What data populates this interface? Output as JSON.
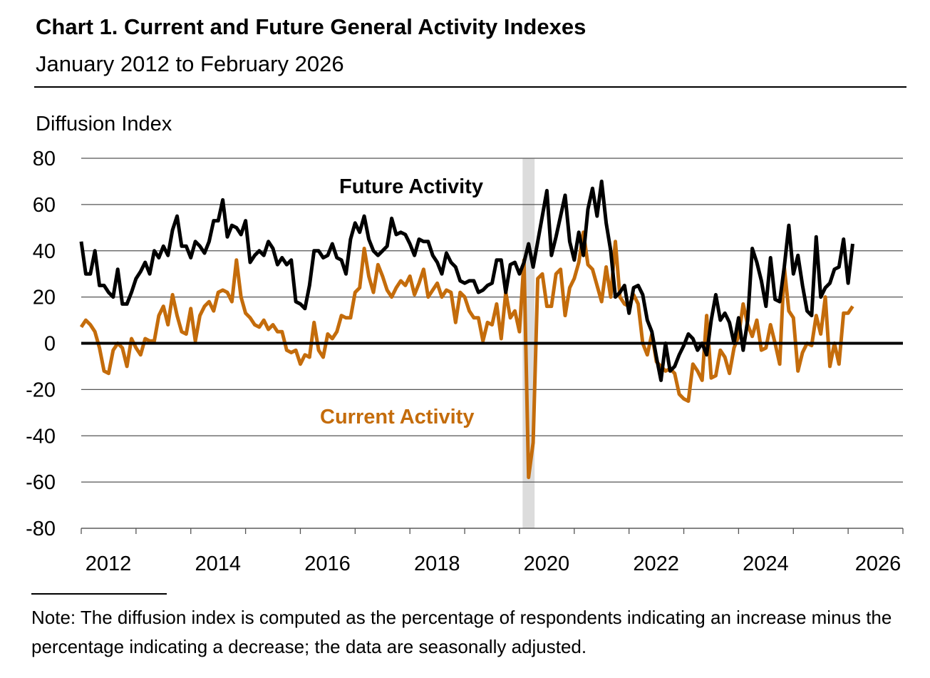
{
  "header": {
    "title": "Chart 1. Current and Future General Activity Indexes",
    "subtitle": "January 2012 to February 2026"
  },
  "note": "Note: The diffusion index is computed as the percentage of respondents indicating an increase minus the percentage indicating a decrease; the data are seasonally adjusted.",
  "chart_data": {
    "type": "line",
    "title": "Chart 1. Current and Future General Activity Indexes",
    "subtitle": "January 2012 to February 2026",
    "ylabel": "Diffusion Index",
    "xlabel": "",
    "ylim": [
      -80,
      80
    ],
    "yticks": [
      "80",
      "60",
      "40",
      "20",
      "0",
      "-20",
      "-40",
      "-60",
      "-80"
    ],
    "xticks": [
      "2012",
      "2014",
      "2016",
      "2018",
      "2020",
      "2022",
      "2024",
      "2026"
    ],
    "xrange": [
      "2012-01",
      "2026-12"
    ],
    "frequency": "monthly",
    "grid": true,
    "shaded_period": [
      "2020-02",
      "2020-04"
    ],
    "shade_color": "#dcdcdc",
    "series": [
      {
        "name": "Future Activity",
        "color": "#000000",
        "values_by_year": {
          "2012": [
            44,
            30,
            30,
            40,
            25,
            25,
            22,
            20,
            32,
            17,
            17,
            22
          ],
          "2013": [
            28,
            31,
            35,
            30,
            40,
            37,
            42,
            38,
            49,
            55,
            42,
            42
          ],
          "2014": [
            37,
            44,
            42,
            39,
            44,
            53,
            53,
            62,
            46,
            51,
            50,
            47
          ],
          "2015": [
            53,
            35,
            38,
            40,
            38,
            44,
            41,
            34,
            37,
            34,
            36,
            18
          ],
          "2016": [
            17,
            15,
            25,
            40,
            40,
            37,
            38,
            43,
            37,
            36,
            30,
            45
          ],
          "2017": [
            52,
            48,
            55,
            45,
            40,
            38,
            40,
            42,
            54,
            47,
            48,
            47
          ],
          "2018": [
            43,
            38,
            45,
            44,
            44,
            38,
            35,
            30,
            39,
            35,
            33,
            27
          ],
          "2019": [
            26,
            27,
            27,
            22,
            23,
            25,
            26,
            36,
            36,
            22,
            34,
            35
          ],
          "2020": [
            30,
            35,
            43,
            33,
            44,
            55,
            66,
            38,
            46,
            55,
            64,
            44
          ],
          "2021": [
            36,
            48,
            38,
            58,
            67,
            55,
            70,
            52,
            40,
            20,
            22,
            25
          ],
          "2022": [
            13,
            24,
            25,
            21,
            10,
            5,
            -6,
            -16,
            0,
            -12,
            -10,
            -5
          ],
          "2023": [
            -1,
            4,
            2,
            -3,
            0,
            -5,
            10,
            21,
            10,
            13,
            9,
            0
          ],
          "2024": [
            11,
            -3,
            10,
            41,
            35,
            27,
            16,
            37,
            19,
            18,
            33,
            51
          ],
          "2025": [
            30,
            38,
            25,
            14,
            12,
            46,
            20,
            24,
            26,
            32,
            33,
            45
          ],
          "2026": [
            26,
            43
          ]
        }
      },
      {
        "name": "Current Activity",
        "color": "#c46c0b",
        "values_by_year": {
          "2012": [
            7,
            10,
            8,
            5,
            -2,
            -12,
            -13,
            -3,
            0,
            -2,
            -10,
            2
          ],
          "2013": [
            -2,
            -5,
            2,
            1,
            1,
            12,
            16,
            8,
            21,
            12,
            5,
            4
          ],
          "2014": [
            15,
            1,
            12,
            16,
            18,
            14,
            22,
            23,
            22,
            18,
            36,
            20
          ],
          "2015": [
            13,
            11,
            8,
            7,
            10,
            6,
            8,
            5,
            5,
            -3,
            -4,
            -3
          ],
          "2016": [
            -9,
            -5,
            -6,
            9,
            -3,
            -6,
            4,
            2,
            5,
            12,
            11,
            11
          ],
          "2017": [
            22,
            24,
            41,
            29,
            22,
            34,
            29,
            23,
            20,
            24,
            27,
            25
          ],
          "2018": [
            29,
            21,
            26,
            32,
            20,
            23,
            26,
            20,
            23,
            22,
            9,
            22
          ],
          "2019": [
            20,
            14,
            11,
            11,
            1,
            9,
            8,
            17,
            2,
            22,
            11,
            14
          ],
          "2020": [
            5,
            36,
            -58,
            -43,
            28,
            30,
            16,
            16,
            30,
            32,
            12,
            24
          ],
          "2021": [
            28,
            35,
            48,
            34,
            32,
            25,
            18,
            33,
            20,
            44,
            20,
            17
          ],
          "2022": [
            16,
            21,
            17,
            0,
            -5,
            4,
            -8,
            -10,
            -12,
            -11,
            -13,
            -22
          ],
          "2023": [
            -24,
            -25,
            -9,
            -12,
            -16,
            12,
            -15,
            -14,
            -3,
            -6,
            -13,
            -2
          ],
          "2024": [
            3,
            17,
            8,
            3,
            10,
            -3,
            -2,
            8,
            0,
            -9,
            33,
            14
          ],
          "2025": [
            11,
            -12,
            -4,
            0,
            -1,
            12,
            4,
            20,
            -10,
            0,
            -9,
            13
          ],
          "2026": [
            13,
            16
          ]
        }
      }
    ]
  }
}
